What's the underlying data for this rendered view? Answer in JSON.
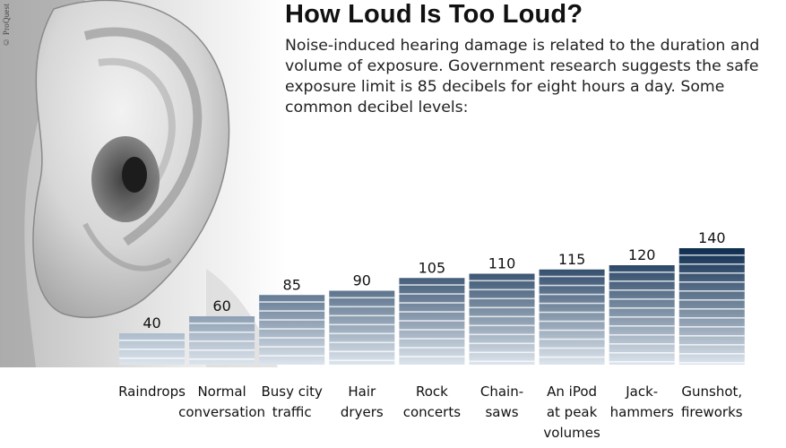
{
  "credit": "© ProQuest",
  "chart_data": {
    "type": "bar",
    "title": "How Loud Is Too Loud?",
    "subtitle": "Noise-induced hearing damage is related to the duration and volume of exposure. Government research suggests the safe exposure limit is 85 decibels for eight hours a day. Some common decibel levels:",
    "categories": [
      [
        "Raindrops"
      ],
      [
        "Normal",
        "conversation"
      ],
      [
        "Busy city",
        "traffic"
      ],
      [
        "Hair",
        "dryers"
      ],
      [
        "Rock",
        "concerts"
      ],
      [
        "Chain-",
        "saws"
      ],
      [
        "An iPod",
        "at peak",
        "volumes"
      ],
      [
        "Jack-",
        "hammers"
      ],
      [
        "Gunshot,",
        "fireworks"
      ]
    ],
    "values": [
      40,
      60,
      85,
      90,
      105,
      110,
      115,
      120,
      140
    ],
    "ylabel": "",
    "xlabel": "",
    "ylim": [
      0,
      150
    ],
    "grid": false,
    "colors": {
      "bar_light": "#c9d5e2",
      "bar_dark": "#0d2c4f",
      "stripe": "#ffffff"
    }
  }
}
